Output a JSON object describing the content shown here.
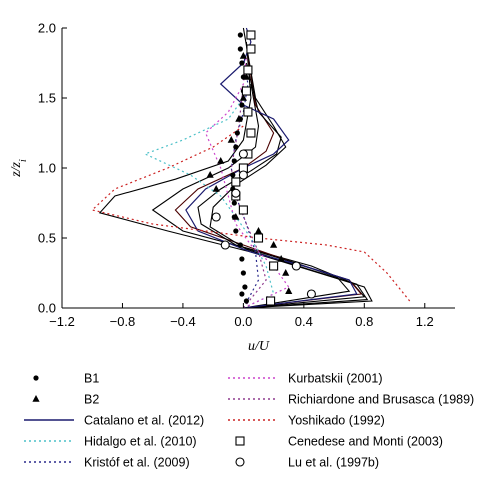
{
  "chart_data": {
    "type": "line",
    "xlabel": "u/U",
    "ylabel": "z/z_i",
    "xlim": [
      -1.2,
      1.4
    ],
    "ylim": [
      0.0,
      2.0
    ],
    "xticks": [
      "−1.2",
      "−0.8",
      "−0.4",
      "0.0",
      "0.4",
      "0.8",
      "1.2"
    ],
    "yticks": [
      "0.0",
      "0.5",
      "1.0",
      "1.5",
      "2.0"
    ],
    "grid": false,
    "legend_placement": "below",
    "series": [
      {
        "name": "B1",
        "kind": "markers",
        "marker": "dot",
        "color": "#000000",
        "x": [
          0.02,
          0.01,
          0.0,
          -0.01,
          -0.02,
          -0.05,
          -0.06,
          -0.06,
          -0.07,
          -0.07,
          -0.06,
          -0.05,
          -0.04,
          -0.02,
          -0.01,
          0.0,
          0.0,
          -0.01,
          -0.02,
          -0.02,
          -0.01
        ],
        "y": [
          0.05,
          0.15,
          0.25,
          0.35,
          0.45,
          0.55,
          0.65,
          0.75,
          0.85,
          0.95,
          1.05,
          1.15,
          1.25,
          1.35,
          1.45,
          1.55,
          1.65,
          1.75,
          1.85,
          1.95,
          0.1
        ]
      },
      {
        "name": "B2",
        "kind": "markers",
        "marker": "triangle",
        "color": "#000000",
        "x": [
          0.3,
          0.28,
          0.25,
          0.2,
          0.1,
          -0.05,
          -0.18,
          -0.22,
          -0.15,
          -0.08,
          -0.03,
          0.0,
          0.02,
          0.0
        ],
        "y": [
          0.12,
          0.25,
          0.35,
          0.45,
          0.55,
          0.65,
          0.85,
          0.95,
          1.05,
          1.2,
          1.35,
          1.5,
          1.65,
          1.8
        ]
      },
      {
        "name": "Catalano et al. (2012)",
        "kind": "line",
        "color": "#1a1a6e",
        "dash": "",
        "x": [
          0.0,
          0.75,
          0.7,
          0.4,
          0.05,
          -0.3,
          -0.38,
          -0.25,
          0.0,
          0.2,
          0.3,
          0.2,
          0.0,
          -0.15,
          0.0,
          0.05,
          0.02
        ],
        "y": [
          0.0,
          0.1,
          0.2,
          0.3,
          0.4,
          0.55,
          0.7,
          0.85,
          1.0,
          1.1,
          1.2,
          1.35,
          1.45,
          1.6,
          1.75,
          1.9,
          2.0
        ]
      },
      {
        "name": "Hidalgo et al. (2010)",
        "kind": "line",
        "color": "#4cc0c8",
        "dash": "2,3",
        "x": [
          0.0,
          0.2,
          0.15,
          0.05,
          -0.05,
          -0.15,
          -0.35,
          -0.65,
          -0.4,
          -0.1,
          0.0
        ],
        "y": [
          0.0,
          0.1,
          0.3,
          0.5,
          0.65,
          0.8,
          0.95,
          1.1,
          1.2,
          1.35,
          1.5
        ]
      },
      {
        "name": "Kristóf et al. (2009)",
        "kind": "line",
        "color": "#2a2a8c",
        "dash": "2,3",
        "x": [
          0.0,
          0.1,
          0.08,
          0.02,
          -0.05,
          -0.08,
          -0.05,
          0.0,
          0.03,
          0.0
        ],
        "y": [
          0.0,
          0.2,
          0.4,
          0.6,
          0.8,
          1.0,
          1.2,
          1.4,
          1.6,
          1.8
        ]
      },
      {
        "name": "Kurbatskii (2001)",
        "kind": "line",
        "color": "#cc44cc",
        "dash": "2,3",
        "x": [
          0.0,
          0.3,
          0.2,
          0.05,
          -0.05,
          -0.1,
          -0.15,
          -0.25,
          -0.1,
          0.0,
          0.02
        ],
        "y": [
          0.0,
          0.15,
          0.3,
          0.45,
          0.6,
          0.8,
          1.0,
          1.25,
          1.4,
          1.6,
          1.8
        ]
      },
      {
        "name": "Richiardone and Brusasca (1989)",
        "kind": "line",
        "color": "#8e3a8e",
        "dash": "2,3",
        "x": [
          0.0,
          0.15,
          0.1,
          0.02,
          -0.05,
          -0.08,
          -0.03,
          0.0
        ],
        "y": [
          0.0,
          0.2,
          0.4,
          0.6,
          0.8,
          1.0,
          1.3,
          1.6
        ]
      },
      {
        "name": "Yoshikado (1992)",
        "kind": "line",
        "color": "#cc2222",
        "dash": "2,3",
        "x": [
          1.1,
          0.95,
          0.8,
          0.55,
          0.1,
          -0.6,
          -1.0,
          -0.85,
          -0.5,
          -0.2,
          0.0
        ],
        "y": [
          0.05,
          0.25,
          0.4,
          0.45,
          0.5,
          0.6,
          0.7,
          0.85,
          1.0,
          1.15,
          1.3
        ]
      },
      {
        "name": "Cenedese and Monti (2003)",
        "kind": "markers",
        "marker": "square",
        "color": "#000000",
        "x": [
          0.18,
          0.2,
          0.1,
          0.0,
          -0.05,
          -0.05,
          0.0,
          0.03,
          0.05,
          0.03,
          0.02,
          0.03,
          0.05,
          0.05
        ],
        "y": [
          0.05,
          0.3,
          0.5,
          0.7,
          0.8,
          0.9,
          1.0,
          1.1,
          1.25,
          1.4,
          1.55,
          1.7,
          1.85,
          1.95
        ]
      },
      {
        "name": "Lu et al. (1997b)",
        "kind": "markers",
        "marker": "circle",
        "color": "#000000",
        "x": [
          0.45,
          0.35,
          -0.12,
          -0.18,
          -0.05,
          0.0,
          0.0
        ],
        "y": [
          0.1,
          0.3,
          0.45,
          0.65,
          0.82,
          0.95,
          1.1
        ]
      }
    ],
    "unnamed_series": [
      {
        "color": "#000000",
        "x": [
          0.0,
          0.85,
          0.8,
          0.5,
          0.05,
          -0.5,
          -0.95,
          -0.85,
          -0.45,
          -0.1,
          0.0,
          0.05,
          0.02
        ],
        "y": [
          0.0,
          0.05,
          0.15,
          0.25,
          0.4,
          0.55,
          0.68,
          0.8,
          0.92,
          1.05,
          1.2,
          1.5,
          1.9
        ]
      },
      {
        "color": "#000000",
        "x": [
          0.0,
          0.8,
          0.72,
          0.45,
          0.05,
          -0.4,
          -0.6,
          -0.4,
          -0.1,
          0.08,
          0.1,
          0.05
        ],
        "y": [
          0.0,
          0.08,
          0.18,
          0.3,
          0.42,
          0.55,
          0.7,
          0.85,
          1.0,
          1.15,
          1.3,
          1.6
        ]
      },
      {
        "color": "#4a0000",
        "x": [
          0.0,
          0.78,
          0.7,
          0.4,
          0.0,
          -0.35,
          -0.45,
          -0.3,
          0.0,
          0.15,
          0.2,
          0.08,
          0.03
        ],
        "y": [
          0.0,
          0.1,
          0.2,
          0.3,
          0.45,
          0.58,
          0.7,
          0.85,
          1.0,
          1.12,
          1.25,
          1.45,
          1.8
        ]
      },
      {
        "color": "#000000",
        "x": [
          0.0,
          0.7,
          0.62,
          0.35,
          -0.05,
          -0.28,
          -0.3,
          -0.15,
          0.05,
          0.22,
          0.25,
          0.1,
          0.02
        ],
        "y": [
          0.0,
          0.12,
          0.22,
          0.32,
          0.45,
          0.6,
          0.72,
          0.85,
          0.98,
          1.1,
          1.22,
          1.4,
          1.75
        ]
      },
      {
        "color": "#000000",
        "x": [
          0.0,
          0.82,
          0.75,
          0.42,
          0.02,
          -0.22,
          -0.2,
          -0.05,
          0.15,
          0.28,
          0.2,
          0.08,
          0.0
        ],
        "y": [
          0.0,
          0.06,
          0.17,
          0.28,
          0.42,
          0.58,
          0.72,
          0.88,
          1.02,
          1.15,
          1.3,
          1.5,
          2.0
        ]
      }
    ]
  },
  "legend": {
    "left": [
      {
        "label": "B1",
        "marker": "dot"
      },
      {
        "label": "B2",
        "marker": "triangle"
      },
      {
        "label": "Catalano et al. (2012)",
        "line": "solid",
        "color": "#1a1a6e"
      },
      {
        "label": "Hidalgo et al. (2010)",
        "line": "dotted",
        "color": "#4cc0c8"
      },
      {
        "label": "Kristóf et al. (2009)",
        "line": "dotted",
        "color": "#2a2a8c"
      }
    ],
    "right": [
      {
        "label": "Kurbatskii (2001)",
        "line": "dotted",
        "color": "#cc44cc"
      },
      {
        "label": "Richiardone and Brusasca (1989)",
        "line": "dotted",
        "color": "#8e3a8e"
      },
      {
        "label": "Yoshikado (1992)",
        "line": "dotted",
        "color": "#cc2222"
      },
      {
        "label": "Cenedese and Monti (2003)",
        "marker": "square"
      },
      {
        "label": "Lu et al. (1997b)",
        "marker": "circle"
      }
    ]
  }
}
